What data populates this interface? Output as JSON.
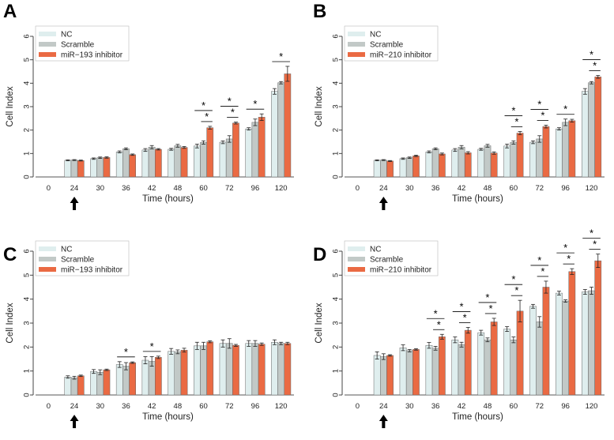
{
  "figure": {
    "colors": {
      "NC": "#dfeeee",
      "Scramble": "#c2c9c7",
      "inhibitor": "#ea6a43",
      "bar_stroke": "#666666"
    }
  },
  "chart_data": [
    {
      "panel": "A",
      "type": "bar",
      "title": "",
      "xlabel": "Time (hours)",
      "ylabel": "Cell Index",
      "ylim": [
        0,
        6
      ],
      "yticks": [
        "0",
        "1",
        "2",
        "3",
        "4",
        "5",
        "6"
      ],
      "categories": [
        "0",
        "24",
        "30",
        "36",
        "42",
        "48",
        "60",
        "72",
        "96",
        "120"
      ],
      "legend": [
        "NC",
        "Scramble",
        "miR−193 inhibitor"
      ],
      "legend_position": "top-left",
      "arrow_at": "24",
      "series": [
        {
          "name": "NC",
          "values": [
            0,
            0.71,
            0.78,
            1.07,
            1.15,
            1.18,
            1.32,
            1.48,
            2.05,
            3.65
          ],
          "errors": [
            0,
            0.02,
            0.03,
            0.04,
            0.06,
            0.04,
            0.08,
            0.06,
            0.05,
            0.12
          ]
        },
        {
          "name": "Scramble",
          "values": [
            0,
            0.72,
            0.82,
            1.2,
            1.27,
            1.33,
            1.47,
            1.62,
            2.33,
            4.02
          ],
          "errors": [
            0,
            0.02,
            0.03,
            0.04,
            0.07,
            0.06,
            0.07,
            0.14,
            0.14,
            0.05
          ]
        },
        {
          "name": "miR−193 inhibitor",
          "values": [
            0,
            0.7,
            0.83,
            0.95,
            1.18,
            1.26,
            2.1,
            2.3,
            2.55,
            4.4
          ],
          "errors": [
            0,
            0.02,
            0.03,
            0.03,
            0.03,
            0.04,
            0.06,
            0.04,
            0.14,
            0.32
          ]
        }
      ],
      "significance": [
        {
          "category": "60",
          "spans": [
            "NC-inhibitor",
            "Scramble-inhibitor"
          ]
        },
        {
          "category": "72",
          "spans": [
            "NC-inhibitor",
            "Scramble-inhibitor"
          ]
        },
        {
          "category": "96",
          "spans": [
            "NC-inhibitor"
          ]
        },
        {
          "category": "120",
          "spans": [
            "NC-inhibitor"
          ]
        }
      ]
    },
    {
      "panel": "B",
      "type": "bar",
      "title": "",
      "xlabel": "Time (hours)",
      "ylabel": "Cell Index",
      "ylim": [
        0,
        6
      ],
      "yticks": [
        "0",
        "1",
        "2",
        "3",
        "4",
        "5",
        "6"
      ],
      "categories": [
        "0",
        "24",
        "30",
        "36",
        "42",
        "48",
        "60",
        "72",
        "96",
        "120"
      ],
      "legend": [
        "NC",
        "Scramble",
        "miR−210 inhibitor"
      ],
      "legend_position": "top-left",
      "arrow_at": "24",
      "series": [
        {
          "name": "NC",
          "values": [
            0,
            0.71,
            0.78,
            1.07,
            1.15,
            1.18,
            1.32,
            1.48,
            2.05,
            3.65
          ],
          "errors": [
            0,
            0.02,
            0.03,
            0.04,
            0.06,
            0.04,
            0.08,
            0.06,
            0.05,
            0.12
          ]
        },
        {
          "name": "Scramble",
          "values": [
            0,
            0.72,
            0.82,
            1.2,
            1.27,
            1.33,
            1.47,
            1.62,
            2.33,
            4.02
          ],
          "errors": [
            0,
            0.02,
            0.03,
            0.04,
            0.07,
            0.06,
            0.07,
            0.14,
            0.14,
            0.05
          ]
        },
        {
          "name": "miR−210 inhibitor",
          "values": [
            0,
            0.68,
            0.9,
            0.98,
            1.03,
            1.02,
            1.87,
            2.15,
            2.4,
            4.27
          ],
          "errors": [
            0,
            0.02,
            0.03,
            0.04,
            0.05,
            0.05,
            0.07,
            0.06,
            0.06,
            0.06
          ]
        }
      ],
      "significance": [
        {
          "category": "60",
          "spans": [
            "NC-inhibitor",
            "Scramble-inhibitor"
          ]
        },
        {
          "category": "72",
          "spans": [
            "NC-inhibitor",
            "Scramble-inhibitor"
          ]
        },
        {
          "category": "96",
          "spans": [
            "NC-inhibitor"
          ]
        },
        {
          "category": "120",
          "spans": [
            "NC-inhibitor",
            "Scramble-inhibitor"
          ]
        }
      ]
    },
    {
      "panel": "C",
      "type": "bar",
      "title": "",
      "xlabel": "Time (hours)",
      "ylabel": "Cell Index",
      "ylim": [
        0,
        6
      ],
      "yticks": [
        "0",
        "1",
        "2",
        "3",
        "4",
        "5",
        "6"
      ],
      "categories": [
        "0",
        "24",
        "30",
        "36",
        "42",
        "48",
        "60",
        "72",
        "96",
        "120"
      ],
      "legend": [
        "NC",
        "Scramble",
        "miR−193 inhibitor"
      ],
      "legend_position": "top-left",
      "arrow_at": "24",
      "series": [
        {
          "name": "NC",
          "values": [
            0,
            0.75,
            0.98,
            1.27,
            1.45,
            1.82,
            2.05,
            2.15,
            2.15,
            2.2
          ],
          "errors": [
            0,
            0.05,
            0.08,
            0.12,
            0.15,
            0.12,
            0.15,
            0.15,
            0.12,
            0.1
          ]
        },
        {
          "name": "Scramble",
          "values": [
            0,
            0.72,
            0.95,
            1.2,
            1.4,
            1.8,
            2.05,
            2.15,
            2.15,
            2.15
          ],
          "errors": [
            0,
            0.06,
            0.1,
            0.15,
            0.2,
            0.08,
            0.15,
            0.2,
            0.12,
            0.05
          ]
        },
        {
          "name": "miR−193 inhibitor",
          "values": [
            0,
            0.8,
            1.05,
            1.35,
            1.57,
            1.87,
            2.22,
            2.07,
            2.12,
            2.15
          ],
          "errors": [
            0,
            0.03,
            0.03,
            0.03,
            0.05,
            0.08,
            0.04,
            0.04,
            0.05,
            0.05
          ]
        }
      ],
      "significance": [
        {
          "category": "36",
          "spans": [
            "NC-inhibitor"
          ]
        },
        {
          "category": "42",
          "spans": [
            "NC-inhibitor"
          ]
        }
      ]
    },
    {
      "panel": "D",
      "type": "bar",
      "title": "",
      "xlabel": "Time (hours)",
      "ylabel": "Cell Index",
      "ylim": [
        0,
        6
      ],
      "yticks": [
        "0",
        "1",
        "2",
        "3",
        "4",
        "5",
        "6"
      ],
      "categories": [
        "0",
        "24",
        "30",
        "36",
        "42",
        "48",
        "60",
        "72",
        "96",
        "120"
      ],
      "legend": [
        "NC",
        "Scramble",
        "miR−210 inhibitor"
      ],
      "legend_position": "top-left",
      "arrow_at": "24",
      "series": [
        {
          "name": "NC",
          "values": [
            0,
            1.65,
            1.97,
            2.07,
            2.3,
            2.6,
            2.75,
            3.7,
            4.25,
            4.3
          ],
          "errors": [
            0,
            0.15,
            0.12,
            0.12,
            0.12,
            0.1,
            0.1,
            0.08,
            0.08,
            0.1
          ]
        },
        {
          "name": "Scramble",
          "values": [
            0,
            1.6,
            1.85,
            1.95,
            2.1,
            2.3,
            2.3,
            3.05,
            3.92,
            4.35
          ],
          "errors": [
            0,
            0.12,
            0.05,
            0.08,
            0.1,
            0.08,
            0.12,
            0.22,
            0.05,
            0.15
          ]
        },
        {
          "name": "miR−210 inhibitor",
          "values": [
            0,
            1.65,
            1.9,
            2.43,
            2.7,
            3.05,
            3.5,
            4.5,
            5.15,
            5.6
          ],
          "errors": [
            0,
            0.03,
            0.03,
            0.1,
            0.12,
            0.15,
            0.45,
            0.25,
            0.12,
            0.28
          ]
        }
      ],
      "significance": [
        {
          "category": "36",
          "spans": [
            "NC-inhibitor",
            "Scramble-inhibitor"
          ]
        },
        {
          "category": "42",
          "spans": [
            "NC-inhibitor",
            "Scramble-inhibitor"
          ]
        },
        {
          "category": "48",
          "spans": [
            "NC-inhibitor",
            "Scramble-inhibitor"
          ]
        },
        {
          "category": "60",
          "spans": [
            "NC-inhibitor",
            "Scramble-inhibitor"
          ]
        },
        {
          "category": "72",
          "spans": [
            "NC-inhibitor",
            "Scramble-inhibitor"
          ]
        },
        {
          "category": "96",
          "spans": [
            "NC-inhibitor",
            "Scramble-inhibitor"
          ]
        },
        {
          "category": "120",
          "spans": [
            "NC-inhibitor",
            "Scramble-inhibitor"
          ]
        }
      ]
    }
  ],
  "significance_marker": "*"
}
